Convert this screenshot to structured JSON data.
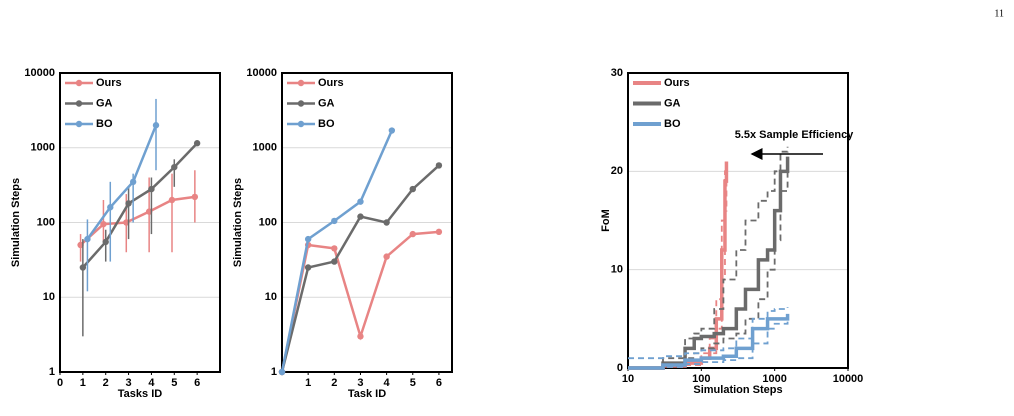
{
  "page_number": "11",
  "chart_data": [
    {
      "type": "line",
      "xlabel": "Tasks ID",
      "ylabel": "Simulation Steps",
      "log_y": true,
      "grid": true,
      "legend": "upper left",
      "markers": true,
      "xlim": [
        0,
        7
      ],
      "xticks": [
        0,
        1,
        2,
        3,
        4,
        5,
        6
      ],
      "ylim": [
        1,
        10000
      ],
      "yticks": [
        1,
        10,
        100,
        1000,
        10000
      ],
      "series": [
        {
          "name": "Ours",
          "color": "#e88484",
          "x": [
            0.9,
            1.9,
            2.9,
            3.9,
            4.9,
            5.9
          ],
          "values": [
            50,
            95,
            100,
            140,
            200,
            220
          ],
          "lower": [
            30,
            55,
            40,
            40,
            40,
            100
          ],
          "upper": [
            70,
            200,
            240,
            400,
            450,
            500
          ]
        },
        {
          "name": "GA",
          "color": "#6b6b6b",
          "x": [
            1,
            2,
            3,
            4,
            5,
            6
          ],
          "values": [
            25,
            55,
            180,
            280,
            550,
            1150
          ],
          "lower": [
            3,
            30,
            60,
            70,
            300,
            null
          ],
          "upper": [
            60,
            80,
            300,
            400,
            700,
            null
          ]
        },
        {
          "name": "BO",
          "color": "#6fa0d0",
          "x": [
            1.2,
            2.2,
            3.2,
            4.2
          ],
          "values": [
            60,
            160,
            350,
            2000
          ],
          "lower": [
            12,
            30,
            100,
            500
          ],
          "upper": [
            110,
            350,
            450,
            4500
          ]
        }
      ]
    },
    {
      "type": "line",
      "xlabel": "Task ID",
      "ylabel": "Simulation Steps",
      "log_y": true,
      "grid": true,
      "legend": "upper left",
      "markers": true,
      "xlim": [
        0,
        6.5
      ],
      "xticks": [
        1,
        2,
        3,
        4,
        5,
        6
      ],
      "ylim": [
        1,
        10000
      ],
      "yticks": [
        1,
        10,
        100,
        1000,
        10000
      ],
      "series": [
        {
          "name": "Ours",
          "color": "#e88484",
          "x": [
            0,
            1,
            2,
            3,
            4,
            5,
            6
          ],
          "values": [
            1,
            50,
            45,
            3,
            35,
            70,
            75
          ]
        },
        {
          "name": "GA",
          "color": "#6b6b6b",
          "x": [
            0,
            1,
            2,
            3,
            4,
            5,
            6
          ],
          "values": [
            1,
            25,
            30,
            120,
            100,
            280,
            580
          ]
        },
        {
          "name": "BO",
          "color": "#6fa0d0",
          "x": [
            0,
            1,
            2,
            3,
            4.2
          ],
          "values": [
            1,
            60,
            105,
            190,
            1700
          ]
        }
      ]
    },
    {
      "type": "step",
      "xlabel": "Simulation Steps",
      "ylabel": "FoM",
      "log_x": true,
      "grid": true,
      "legend": "upper left",
      "markers": false,
      "xlim": [
        10,
        10000
      ],
      "xticks": [
        10,
        100,
        1000,
        10000
      ],
      "ylim": [
        0,
        30
      ],
      "yticks": [
        0,
        10,
        20,
        30
      ],
      "annotation": "5.5x Sample Efficiency",
      "series": [
        {
          "name": "Ours",
          "color": "#e88484",
          "x": [
            10,
            30,
            60,
            100,
            130,
            160,
            190,
            210,
            220
          ],
          "values": [
            0,
            0.2,
            0.5,
            1,
            2,
            5,
            12,
            19,
            21
          ],
          "lower": [
            0,
            0.1,
            0.3,
            0.6,
            1.5,
            4,
            9,
            16,
            20.5
          ],
          "upper": [
            0,
            0.4,
            0.8,
            1.5,
            3,
            7,
            15,
            20,
            21
          ]
        },
        {
          "name": "GA",
          "color": "#6b6b6b",
          "x": [
            10,
            30,
            60,
            80,
            100,
            150,
            200,
            300,
            400,
            600,
            800,
            1000,
            1200,
            1500
          ],
          "values": [
            0,
            0.5,
            2,
            3,
            3.2,
            3.5,
            4,
            6,
            8,
            11,
            12,
            16,
            20,
            21.5
          ],
          "lower": [
            0,
            0.2,
            1,
            1.5,
            2,
            2.5,
            3,
            3.5,
            5,
            7,
            10,
            13,
            18,
            21
          ],
          "upper": [
            0,
            1,
            3,
            3.5,
            4,
            6,
            9,
            12,
            15,
            17,
            18,
            20,
            22,
            22.5
          ]
        },
        {
          "name": "BO",
          "color": "#6fa0d0",
          "x": [
            10,
            30,
            60,
            100,
            200,
            300,
            500,
            800,
            1000,
            1500
          ],
          "values": [
            0,
            0.3,
            0.8,
            1,
            1.2,
            2,
            4,
            5,
            5,
            5.5
          ],
          "lower": [
            0,
            0.1,
            0.4,
            0.6,
            0.8,
            1,
            2.5,
            4,
            4.5,
            5
          ],
          "upper": [
            1,
            1.2,
            1.5,
            1.8,
            2,
            3,
            5,
            5.8,
            6,
            6.2
          ]
        }
      ]
    }
  ]
}
